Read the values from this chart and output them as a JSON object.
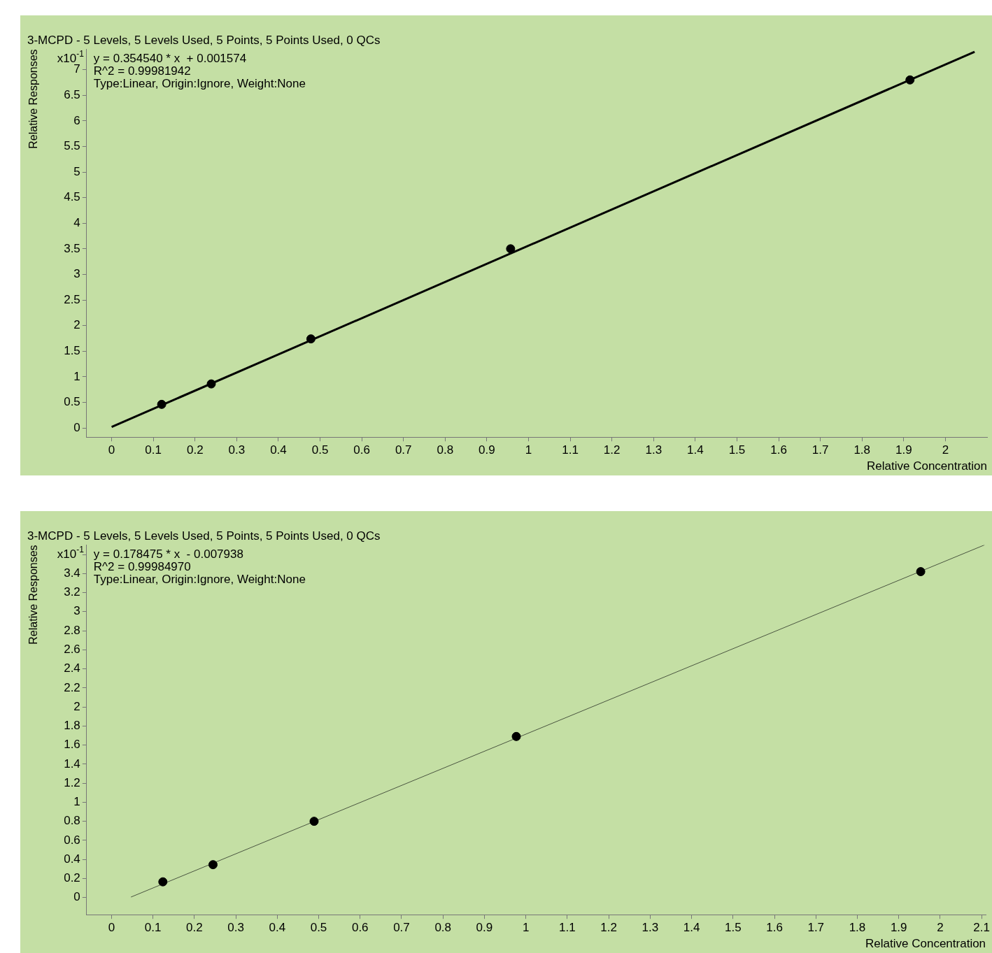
{
  "chart_data": [
    {
      "type": "scatter",
      "title": "3-MCPD - 5 Levels, 5 Levels Used, 5 Points, 5 Points Used, 0 QCs",
      "xlabel": "Relative Concentration",
      "ylabel": "Relative Responses",
      "annotations": [
        "x10$^{-1}$",
        "y = 0.354540 * x  + 0.001574",
        "R^2 = 0.99981942",
        "Type:Linear, Origin:Ignore, Weight:None"
      ],
      "series": [
        {
          "type": "scatter",
          "marker": "circle",
          "color": "#000000",
          "x": [
            0.12,
            0.239,
            0.478,
            0.957,
            1.915
          ],
          "values": [
            0.46,
            0.86,
            1.74,
            3.5,
            6.8
          ]
        },
        {
          "type": "line",
          "marker": "none",
          "color": "#000000",
          "x": [
            0,
            2.07
          ],
          "values": [
            0.02,
            7.35
          ]
        }
      ],
      "xlim": [
        -0.06,
        2.1
      ],
      "xticks": [
        0,
        0.1,
        0.2,
        0.3,
        0.4,
        0.5,
        0.6,
        0.7,
        0.8,
        0.9,
        1,
        1.1,
        1.2,
        1.3,
        1.4,
        1.5,
        1.6,
        1.7,
        1.8,
        1.9,
        2
      ],
      "ylim": [
        -0.18,
        7.4
      ],
      "yticks": [
        0,
        0.5,
        1,
        1.5,
        2,
        2.5,
        3,
        3.5,
        4,
        4.5,
        5,
        5.5,
        6,
        6.5,
        7
      ],
      "grid": false,
      "legend": false
    },
    {
      "type": "scatter",
      "title": "3-MCPD - 5 Levels, 5 Levels Used, 5 Points, 5 Points Used, 0 QCs",
      "xlabel": "Relative Concentration",
      "ylabel": "Relative Responses",
      "annotations": [
        "x10$^{-1}$",
        "y = 0.178475 * x  - 0.007938",
        "R^2 = 0.99984970",
        "Type:Linear, Origin:Ignore, Weight:None"
      ],
      "series": [
        {
          "type": "scatter",
          "marker": "circle",
          "color": "#000000",
          "x": [
            0.124,
            0.245,
            0.489,
            0.977,
            1.953
          ],
          "values": [
            0.165,
            0.345,
            0.8,
            1.69,
            3.42
          ]
        },
        {
          "type": "line",
          "marker": "none",
          "color": "#4a5540",
          "x": [
            0.047,
            2.107
          ],
          "values": [
            0.005,
            3.7
          ]
        }
      ],
      "xlim": [
        -0.06,
        2.11
      ],
      "xticks": [
        0,
        0.1,
        0.2,
        0.3,
        0.4,
        0.5,
        0.6,
        0.7,
        0.8,
        0.9,
        1,
        1.1,
        1.2,
        1.3,
        1.4,
        1.5,
        1.6,
        1.7,
        1.8,
        1.9,
        2,
        2.1
      ],
      "ylim": [
        -0.18,
        3.7
      ],
      "yticks": [
        0,
        0.2,
        0.4,
        0.6,
        0.8,
        1,
        1.2,
        1.4,
        1.6,
        1.8,
        2,
        2.2,
        2.4,
        2.6,
        2.8,
        3,
        3.2,
        3.4,
        {
          "value": 3.6,
          "label": null
        }
      ],
      "grid": false,
      "legend": false
    }
  ]
}
